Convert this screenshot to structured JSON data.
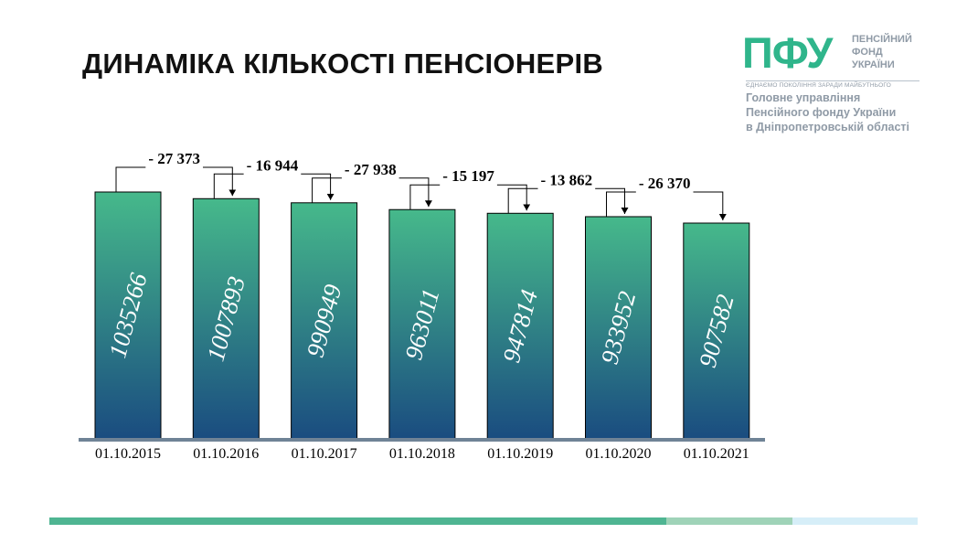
{
  "slide": {
    "title": "ДИНАМІКА КІЛЬКОСТІ ПЕНСІОНЕРІВ"
  },
  "logo": {
    "mark": "ПФУ",
    "name_lines": [
      "ПЕНСІЙНИЙ",
      "ФОНД",
      "УКРАЇНИ"
    ],
    "slogan": "ЄДНАЄМО ПОКОЛІННЯ ЗАРАДИ МАЙБУТНЬОГО",
    "subtitle_lines": [
      "Головне управління",
      "Пенсійного фонду України",
      "в Дніпропетровській області"
    ],
    "color": "#2fb58b"
  },
  "chart_data": {
    "type": "bar",
    "title": "",
    "xlabel": "",
    "ylabel": "",
    "categories": [
      "01.10.2015",
      "01.10.2016",
      "01.10.2017",
      "01.10.2018",
      "01.10.2019",
      "01.10.2020",
      "01.10.2021"
    ],
    "values": [
      1035266,
      1007893,
      990949,
      963011,
      947814,
      933952,
      907582
    ],
    "value_labels": [
      "1035266",
      "1007893",
      "990949",
      "963011",
      "947814",
      "933952",
      "907582"
    ],
    "changes": [
      "- 27 373",
      "- 16 944",
      "- 27 938",
      "- 15 197",
      "- 13 862",
      "- 26 370"
    ],
    "grid": false,
    "colors": {
      "bar_top": "#46b98b",
      "bar_bottom": "#1a4c80",
      "baseline": "#6f8396"
    }
  }
}
